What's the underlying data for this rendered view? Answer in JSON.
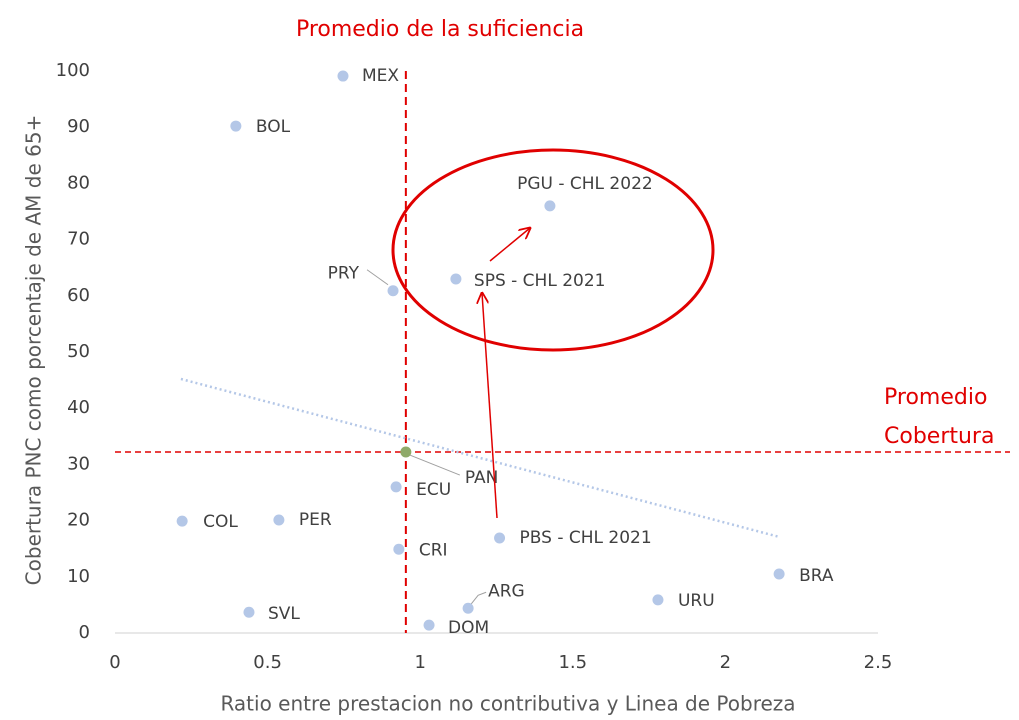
{
  "chart_data": {
    "type": "scatter",
    "x_label": "Ratio entre prestacion no contributiva y Linea de Pobreza",
    "y_label": "Cobertura PNC como porcentaje de AM de 65+",
    "labels": [
      "MEX",
      "BOL",
      "PGU - CHL 2022",
      "SPS - CHL 2021",
      "PRY",
      "PAN",
      "ECU",
      "COL",
      "PER",
      "CRI",
      "PBS - CHL 2021",
      "BRA",
      "URU",
      "ARG",
      "SVL",
      "DOM"
    ],
    "x": [
      0.747,
      0.396,
      1.425,
      1.117,
      0.911,
      0.953,
      0.921,
      0.22,
      0.537,
      0.93,
      1.26,
      2.176,
      1.779,
      1.157,
      0.439,
      1.029
    ],
    "values": [
      99.1,
      90.2,
      76.0,
      63.0,
      60.9,
      32.2,
      26.0,
      19.9,
      20.1,
      14.9,
      16.9,
      10.5,
      5.9,
      4.4,
      3.7,
      1.4
    ],
    "colors": [
      "#b4c7e7",
      "#b4c7e7",
      "#b4c7e7",
      "#b4c7e7",
      "#b4c7e7",
      "#8faa6a",
      "#b4c7e7",
      "#b4c7e7",
      "#b4c7e7",
      "#b4c7e7",
      "#b4c7e7",
      "#b4c7e7",
      "#b4c7e7",
      "#b4c7e7",
      "#b4c7e7",
      "#b4c7e7"
    ],
    "trendline": {
      "x": [
        0.216,
        2.176
      ],
      "values": [
        45.2,
        17.1
      ],
      "color": "#b4c7e7"
    },
    "reference_lines": {
      "x": {
        "value": 0.953,
        "label": "Promedio de la suficiencia",
        "color": "#e00000"
      },
      "y": {
        "value": 32.2,
        "label": [
          "Promedio",
          "Cobertura"
        ],
        "color": "#e00000"
      }
    },
    "xlim": [
      0,
      2.5
    ],
    "xticks": [
      0,
      0.5,
      1,
      1.5,
      2,
      2.5
    ],
    "ylim": [
      0,
      100
    ],
    "yticks": [
      0,
      10,
      20,
      30,
      40,
      50,
      60,
      70,
      80,
      90,
      100
    ],
    "grid": false
  }
}
